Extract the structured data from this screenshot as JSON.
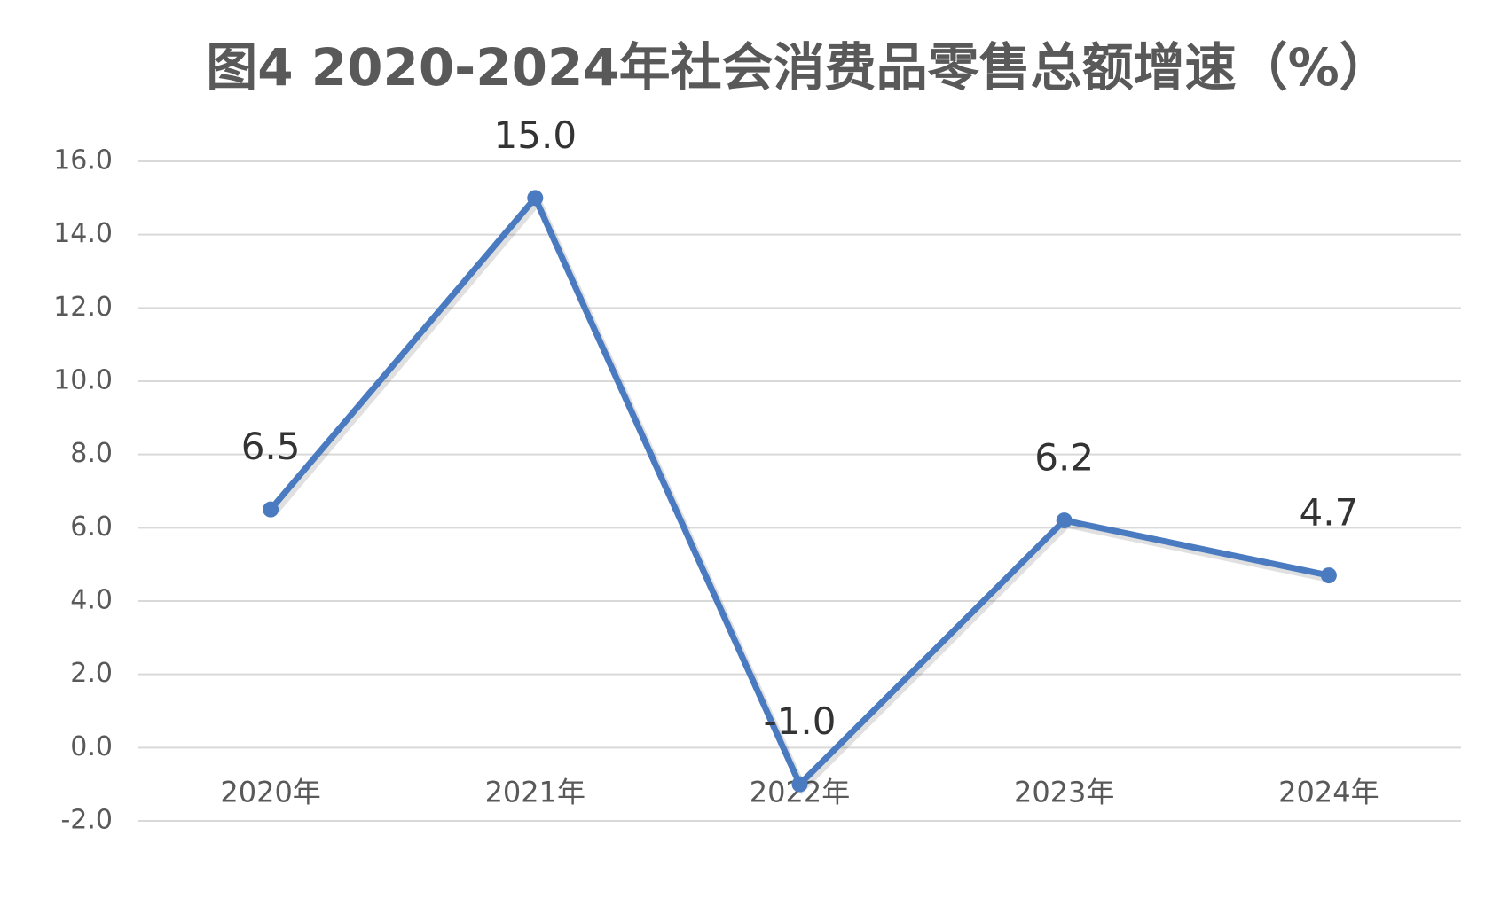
{
  "chart_data": {
    "type": "line",
    "title": "图4 2020-2024年社会消费品零售总额增速（%）",
    "categories": [
      "2020年",
      "2021年",
      "2022年",
      "2023年",
      "2024年"
    ],
    "series": [
      {
        "color": "#4a7bc0",
        "values": [
          6.5,
          15.0,
          -1.0,
          6.2,
          4.7
        ],
        "value_labels": [
          "6.5",
          "15.0",
          "-1.0",
          "6.2",
          "4.7"
        ]
      }
    ],
    "ylim": [
      -2,
      16
    ],
    "yticks": [
      {
        "value": -2,
        "label": "-2.0"
      },
      {
        "value": 0,
        "label": "0.0"
      },
      {
        "value": 2,
        "label": "2.0"
      },
      {
        "value": 4,
        "label": "4.0"
      },
      {
        "value": 6,
        "label": "6.0"
      },
      {
        "value": 8,
        "label": "8.0"
      },
      {
        "value": 10,
        "label": "10.0"
      },
      {
        "value": 12,
        "label": "12.0"
      },
      {
        "value": 14,
        "label": "14.0"
      },
      {
        "value": 16,
        "label": "16.0"
      }
    ],
    "grid": true
  }
}
